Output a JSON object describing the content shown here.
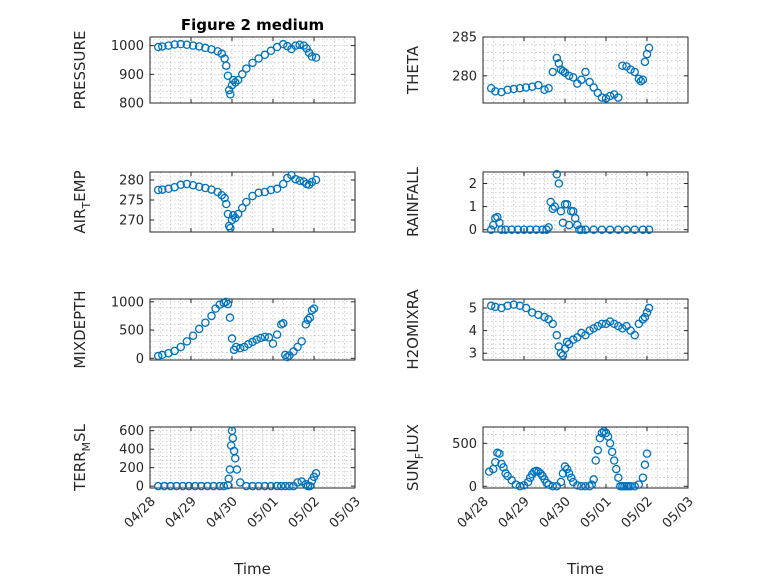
{
  "figure": {
    "marker_color": "#0072BD"
  },
  "chart_data": [
    {
      "type": "scatter",
      "title": "Figure 2 medium",
      "ylabel": "PRESSURE",
      "ylabel_sub": "",
      "ylabel_end": "",
      "xlabel": "",
      "ylim": [
        800,
        1030
      ],
      "yticks": [
        800,
        900,
        1000
      ],
      "xlim": [
        0,
        5
      ],
      "xticks": [
        0,
        1,
        2,
        3,
        4,
        5
      ],
      "xticklabels": [],
      "x": [
        0.2,
        0.3,
        0.45,
        0.6,
        0.75,
        0.9,
        1.05,
        1.2,
        1.35,
        1.5,
        1.65,
        1.75,
        1.82,
        1.86,
        1.9,
        1.93,
        1.96,
        2.0,
        2.03,
        2.08,
        2.15,
        2.25,
        2.35,
        2.5,
        2.65,
        2.8,
        2.95,
        3.1,
        3.25,
        3.35,
        3.45,
        3.55,
        3.65,
        3.75,
        3.82,
        3.88,
        3.95,
        4.05
      ],
      "y": [
        995,
        997,
        1000,
        1004,
        1005,
        1003,
        1000,
        997,
        992,
        987,
        980,
        972,
        955,
        930,
        895,
        845,
        830,
        862,
        880,
        872,
        880,
        900,
        920,
        940,
        955,
        968,
        982,
        995,
        1005,
        998,
        988,
        1000,
        1003,
        1000,
        990,
        975,
        962,
        958
      ]
    },
    {
      "type": "scatter",
      "title": "",
      "ylabel": "THETA",
      "ylabel_sub": "",
      "ylabel_end": "",
      "xlabel": "",
      "ylim": [
        276.5,
        285
      ],
      "yticks": [
        280,
        285
      ],
      "xlim": [
        0,
        5
      ],
      "xticks": [
        0,
        1,
        2,
        3,
        4,
        5
      ],
      "xticklabels": [],
      "x": [
        0.2,
        0.3,
        0.45,
        0.6,
        0.75,
        0.9,
        1.05,
        1.2,
        1.35,
        1.5,
        1.6,
        1.7,
        1.8,
        1.85,
        1.9,
        1.95,
        2.0,
        2.1,
        2.2,
        2.3,
        2.4,
        2.5,
        2.6,
        2.7,
        2.8,
        2.9,
        3.0,
        3.1,
        3.2,
        3.3,
        3.4,
        3.5,
        3.6,
        3.7,
        3.8,
        3.85,
        3.9,
        3.95,
        4.0,
        4.05
      ],
      "y": [
        278.4,
        278.0,
        277.9,
        278.2,
        278.3,
        278.4,
        278.5,
        278.6,
        278.8,
        278.2,
        278.4,
        280.5,
        282.3,
        281.6,
        280.8,
        280.6,
        280.4,
        280.0,
        279.8,
        279.0,
        279.5,
        280.5,
        279.2,
        278.5,
        277.8,
        277.2,
        277.1,
        277.4,
        277.6,
        277.2,
        281.3,
        281.2,
        280.8,
        280.5,
        279.6,
        279.3,
        279.5,
        281.8,
        282.8,
        283.6
      ]
    },
    {
      "type": "scatter",
      "title": "",
      "ylabel": "AIR",
      "ylabel_sub": "T",
      "ylabel_end": "EMP",
      "xlabel": "",
      "ylim": [
        267,
        282
      ],
      "yticks": [
        270,
        275,
        280
      ],
      "xlim": [
        0,
        5
      ],
      "xticks": [
        0,
        1,
        2,
        3,
        4,
        5
      ],
      "xticklabels": [],
      "x": [
        0.2,
        0.3,
        0.45,
        0.6,
        0.75,
        0.9,
        1.05,
        1.2,
        1.35,
        1.5,
        1.65,
        1.75,
        1.82,
        1.86,
        1.9,
        1.93,
        1.96,
        2.0,
        2.03,
        2.08,
        2.15,
        2.25,
        2.35,
        2.5,
        2.65,
        2.8,
        2.95,
        3.1,
        3.25,
        3.35,
        3.45,
        3.55,
        3.65,
        3.75,
        3.82,
        3.88,
        3.95,
        4.05
      ],
      "y": [
        277.5,
        277.6,
        277.8,
        278.2,
        278.8,
        279.0,
        278.7,
        278.3,
        278.0,
        277.6,
        277.0,
        276.2,
        275.5,
        274.0,
        271.5,
        268.5,
        268.0,
        270.0,
        271.2,
        270.5,
        271.5,
        273.0,
        274.5,
        276.0,
        276.8,
        277.0,
        277.5,
        277.8,
        279.0,
        280.5,
        281.2,
        280.2,
        279.8,
        279.6,
        279.0,
        278.8,
        279.5,
        280.0
      ]
    },
    {
      "type": "scatter",
      "title": "",
      "ylabel": "RAINFALL",
      "ylabel_sub": "",
      "ylabel_end": "",
      "xlabel": "",
      "ylim": [
        -0.1,
        2.5
      ],
      "yticks": [
        0,
        1,
        2
      ],
      "xlim": [
        0,
        5
      ],
      "xticks": [
        0,
        1,
        2,
        3,
        4,
        5
      ],
      "xticklabels": [],
      "x": [
        0.2,
        0.25,
        0.3,
        0.35,
        0.4,
        0.45,
        0.55,
        0.7,
        0.85,
        1.0,
        1.15,
        1.3,
        1.45,
        1.55,
        1.6,
        1.65,
        1.7,
        1.75,
        1.8,
        1.85,
        1.9,
        1.95,
        2.0,
        2.05,
        2.1,
        2.15,
        2.2,
        2.25,
        2.3,
        2.35,
        2.4,
        2.5,
        2.7,
        2.9,
        3.1,
        3.3,
        3.5,
        3.7,
        3.9,
        4.05
      ],
      "y": [
        0,
        0.2,
        0.5,
        0.55,
        0.3,
        0,
        0,
        0,
        0,
        0,
        0,
        0,
        0,
        0,
        0.1,
        1.2,
        0.9,
        1.0,
        2.4,
        2.0,
        0.8,
        0.3,
        1.1,
        1.1,
        0.2,
        0.8,
        0.8,
        0.5,
        0.2,
        0,
        0,
        0,
        0,
        0,
        0,
        0,
        0,
        0,
        0,
        0
      ]
    },
    {
      "type": "scatter",
      "title": "",
      "ylabel": "MIXDEPTH",
      "ylabel_sub": "",
      "ylabel_end": "",
      "xlabel": "",
      "ylim": [
        -30,
        1050
      ],
      "yticks": [
        0,
        500,
        1000
      ],
      "xlim": [
        0,
        5
      ],
      "xticks": [
        0,
        1,
        2,
        3,
        4,
        5
      ],
      "xticklabels": [],
      "x": [
        0.2,
        0.3,
        0.45,
        0.6,
        0.75,
        0.9,
        1.05,
        1.2,
        1.35,
        1.5,
        1.6,
        1.7,
        1.8,
        1.85,
        1.9,
        1.95,
        2.0,
        2.05,
        2.1,
        2.2,
        2.3,
        2.4,
        2.5,
        2.6,
        2.7,
        2.8,
        2.9,
        3.0,
        3.1,
        3.2,
        3.25,
        3.3,
        3.35,
        3.4,
        3.5,
        3.6,
        3.7,
        3.8,
        3.85,
        3.9,
        3.95,
        4.0
      ],
      "y": [
        40,
        60,
        90,
        130,
        200,
        300,
        400,
        520,
        630,
        750,
        880,
        950,
        980,
        1000,
        960,
        720,
        350,
        150,
        200,
        180,
        200,
        250,
        290,
        330,
        360,
        380,
        370,
        260,
        420,
        600,
        620,
        60,
        20,
        50,
        120,
        200,
        300,
        600,
        680,
        720,
        850,
        880
      ]
    },
    {
      "type": "scatter",
      "title": "",
      "ylabel": "H2OMIXRA",
      "ylabel_sub": "",
      "ylabel_end": "",
      "xlabel": "",
      "ylim": [
        2.7,
        5.4
      ],
      "yticks": [
        3,
        4,
        5
      ],
      "xlim": [
        0,
        5
      ],
      "xticks": [
        0,
        1,
        2,
        3,
        4,
        5
      ],
      "xticklabels": [],
      "x": [
        0.2,
        0.3,
        0.45,
        0.6,
        0.75,
        0.9,
        1.05,
        1.2,
        1.35,
        1.5,
        1.6,
        1.7,
        1.8,
        1.85,
        1.9,
        1.95,
        2.0,
        2.05,
        2.1,
        2.2,
        2.3,
        2.4,
        2.5,
        2.6,
        2.7,
        2.8,
        2.9,
        3.0,
        3.1,
        3.2,
        3.3,
        3.4,
        3.5,
        3.6,
        3.7,
        3.8,
        3.9,
        3.95,
        4.0,
        4.05
      ],
      "y": [
        5.1,
        5.05,
        5.0,
        5.1,
        5.15,
        5.1,
        5.0,
        4.8,
        4.7,
        4.6,
        4.5,
        4.3,
        3.8,
        3.3,
        3.0,
        2.9,
        3.2,
        3.5,
        3.4,
        3.6,
        3.7,
        3.9,
        3.8,
        4.0,
        4.1,
        4.2,
        4.3,
        4.3,
        4.4,
        4.3,
        4.2,
        4.1,
        4.2,
        4.0,
        3.8,
        4.3,
        4.5,
        4.6,
        4.8,
        5.0
      ]
    },
    {
      "type": "scatter",
      "title": "",
      "ylabel": "TERR",
      "ylabel_sub": "M",
      "ylabel_end": "SL",
      "xlabel": "Time",
      "ylim": [
        -20,
        640
      ],
      "yticks": [
        0,
        200,
        400,
        600
      ],
      "xlim": [
        0,
        5
      ],
      "xticks": [
        0,
        1,
        2,
        3,
        4,
        5
      ],
      "xticklabels": [
        "04/28",
        "04/29",
        "04/30",
        "05/01",
        "05/02",
        "05/03"
      ],
      "x": [
        0.2,
        0.35,
        0.5,
        0.65,
        0.8,
        0.95,
        1.1,
        1.25,
        1.4,
        1.55,
        1.7,
        1.8,
        1.9,
        1.92,
        1.95,
        1.98,
        2.0,
        2.02,
        2.05,
        2.08,
        2.12,
        2.2,
        2.35,
        2.5,
        2.65,
        2.8,
        2.95,
        3.1,
        3.2,
        3.3,
        3.4,
        3.5,
        3.6,
        3.7,
        3.8,
        3.85,
        3.9,
        3.95,
        4.0,
        4.05
      ],
      "y": [
        0,
        0,
        0,
        0,
        0,
        0,
        0,
        0,
        0,
        0,
        0,
        0,
        10,
        80,
        180,
        440,
        600,
        520,
        380,
        300,
        180,
        40,
        0,
        0,
        0,
        0,
        0,
        0,
        0,
        0,
        0,
        0,
        40,
        50,
        20,
        0,
        0,
        60,
        100,
        140
      ]
    },
    {
      "type": "scatter",
      "title": "",
      "ylabel": "SUN",
      "ylabel_sub": "F",
      "ylabel_end": "LUX",
      "xlabel": "Time",
      "ylim": [
        -20,
        690
      ],
      "yticks": [
        0,
        500
      ],
      "xlim": [
        0,
        5
      ],
      "xticks": [
        0,
        1,
        2,
        3,
        4,
        5
      ],
      "xticklabels": [
        "04/28",
        "04/29",
        "04/30",
        "05/01",
        "05/02",
        "05/03"
      ],
      "x": [
        0.15,
        0.25,
        0.3,
        0.35,
        0.4,
        0.45,
        0.5,
        0.55,
        0.6,
        0.7,
        0.8,
        0.9,
        1.0,
        1.1,
        1.15,
        1.2,
        1.25,
        1.3,
        1.35,
        1.4,
        1.45,
        1.5,
        1.55,
        1.6,
        1.7,
        1.8,
        1.9,
        1.95,
        2.0,
        2.05,
        2.1,
        2.15,
        2.2,
        2.3,
        2.4,
        2.5,
        2.6,
        2.65,
        2.7,
        2.75,
        2.8,
        2.85,
        2.9,
        2.95,
        3.0,
        3.05,
        3.1,
        3.15,
        3.2,
        3.25,
        3.3,
        3.35,
        3.4,
        3.45,
        3.5,
        3.55,
        3.6,
        3.7,
        3.8,
        3.9,
        3.95,
        4.0
      ],
      "y": [
        170,
        200,
        280,
        390,
        380,
        260,
        220,
        150,
        120,
        70,
        20,
        0,
        10,
        50,
        100,
        140,
        170,
        180,
        170,
        150,
        120,
        80,
        40,
        20,
        0,
        0,
        50,
        150,
        230,
        200,
        150,
        100,
        50,
        10,
        0,
        0,
        0,
        20,
        80,
        300,
        420,
        560,
        620,
        640,
        620,
        580,
        500,
        400,
        300,
        200,
        100,
        0,
        0,
        0,
        0,
        0,
        0,
        0,
        20,
        100,
        250,
        380
      ]
    }
  ]
}
